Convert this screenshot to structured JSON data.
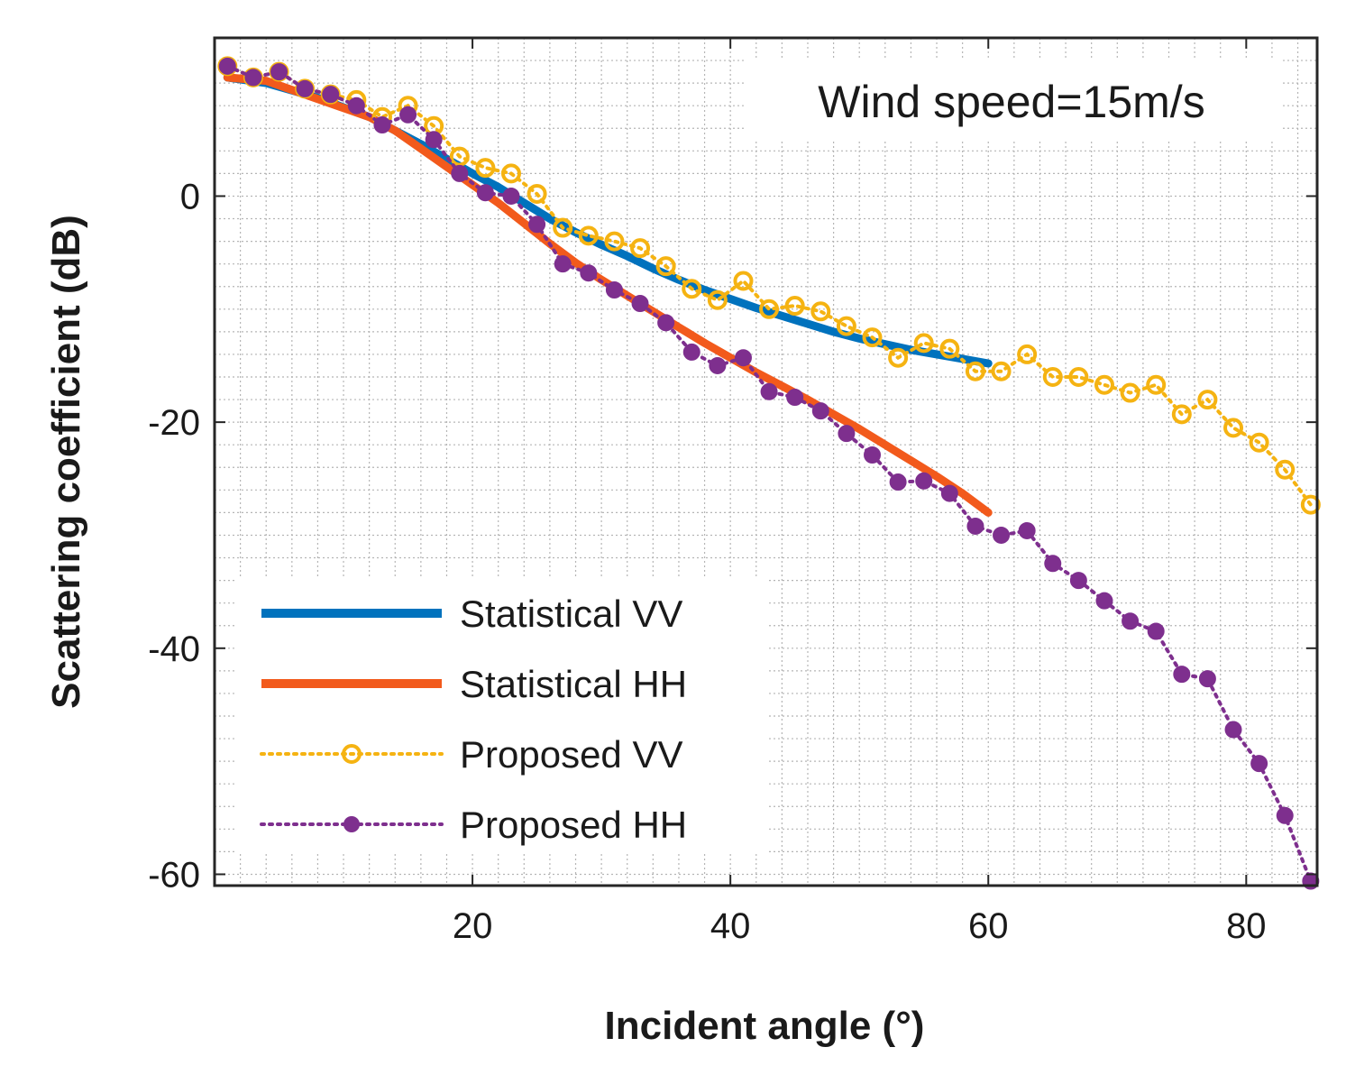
{
  "chart_data": {
    "type": "line",
    "xlabel": "Incident angle (°)",
    "ylabel": "Scattering coefficient (dB)",
    "annotation": "Wind speed=15m/s",
    "xlim": [
      0,
      85.5
    ],
    "ylim": [
      -61,
      14
    ],
    "xticks": [
      20,
      40,
      60,
      80
    ],
    "yticks": [
      0,
      -20,
      -40,
      -60
    ],
    "grid": "minor dotted",
    "legend_position": "bottom-left",
    "colors": {
      "statistical_vv": "#0072bd",
      "statistical_hh": "#f25a1c",
      "proposed_vv": "#f5b312",
      "proposed_hh": "#7e2f8e"
    },
    "series": [
      {
        "name": "Statistical VV",
        "style": "solid-thick",
        "color": "#0072bd",
        "x": [
          1,
          4,
          8,
          12,
          14,
          16,
          18,
          20,
          22,
          24,
          26,
          28,
          30,
          32,
          34,
          36,
          38,
          40,
          42,
          44,
          46,
          48,
          50,
          52,
          54,
          56,
          58,
          60
        ],
        "y": [
          10.5,
          10,
          8.7,
          7,
          5.8,
          4.6,
          3.3,
          2.0,
          0.8,
          -0.6,
          -2.0,
          -3.2,
          -4.3,
          -5.3,
          -6.4,
          -7.4,
          -8.3,
          -9.1,
          -9.9,
          -10.6,
          -11.3,
          -12.0,
          -12.6,
          -13.1,
          -13.6,
          -14.0,
          -14.4,
          -14.8
        ]
      },
      {
        "name": "Statistical HH",
        "style": "solid-thick",
        "color": "#f25a1c",
        "x": [
          1,
          4,
          8,
          12,
          14,
          16,
          18,
          20,
          22,
          24,
          26,
          28,
          30,
          32,
          34,
          36,
          38,
          40,
          42,
          44,
          46,
          48,
          50,
          52,
          54,
          56,
          58,
          60
        ],
        "y": [
          10.5,
          10.2,
          8.6,
          7.0,
          5.8,
          4.2,
          2.6,
          1.0,
          -0.6,
          -2.4,
          -4.2,
          -5.9,
          -7.4,
          -8.8,
          -10.2,
          -11.6,
          -13.0,
          -14.3,
          -15.6,
          -16.8,
          -18.0,
          -19.3,
          -20.6,
          -22.0,
          -23.4,
          -24.8,
          -26.3,
          -28.0
        ]
      },
      {
        "name": "Proposed VV",
        "style": "dotted-circle",
        "color": "#f5b312",
        "x": [
          1,
          3,
          5,
          7,
          9,
          11,
          13,
          15,
          17,
          19,
          21,
          23,
          25,
          27,
          29,
          31,
          33,
          35,
          37,
          39,
          41,
          43,
          45,
          47,
          49,
          51,
          53,
          55,
          57,
          59,
          61,
          63,
          65,
          67,
          69,
          71,
          73,
          75,
          77,
          79,
          81,
          83,
          85
        ],
        "y": [
          11.5,
          10.5,
          11,
          9.5,
          9,
          8.5,
          7,
          8,
          6.2,
          3.5,
          2.5,
          2,
          0.2,
          -2.8,
          -3.5,
          -4.0,
          -4.6,
          -6.2,
          -8.2,
          -9.2,
          -7.5,
          -10,
          -9.7,
          -10.2,
          -11.5,
          -12.5,
          -14.3,
          -13,
          -13.5,
          -15.5,
          -15.5,
          -14,
          -16,
          -16,
          -16.7,
          -17.4,
          -16.7,
          -19.3,
          -18,
          -20.5,
          -21.8,
          -24.2,
          -27.3
        ]
      },
      {
        "name": "Proposed HH",
        "style": "dotted-dot",
        "color": "#7e2f8e",
        "x": [
          1,
          3,
          5,
          7,
          9,
          11,
          13,
          15,
          17,
          19,
          21,
          23,
          25,
          27,
          29,
          31,
          33,
          35,
          37,
          39,
          41,
          43,
          45,
          47,
          49,
          51,
          53,
          55,
          57,
          59,
          61,
          63,
          65,
          67,
          69,
          71,
          73,
          75,
          77,
          79,
          81,
          83,
          85
        ],
        "y": [
          11.5,
          10.5,
          11,
          9.5,
          9,
          8,
          6.3,
          7.2,
          5,
          2,
          0.3,
          0,
          -2.5,
          -6,
          -6.8,
          -8.3,
          -9.5,
          -11.2,
          -13.8,
          -15,
          -14.3,
          -17.3,
          -17.8,
          -19,
          -21,
          -22.9,
          -25.3,
          -25.2,
          -26.3,
          -29.2,
          -30,
          -29.6,
          -32.5,
          -34,
          -35.8,
          -37.6,
          -38.5,
          -42.3,
          -42.7,
          -47.2,
          -50.2,
          -54.8,
          -60.6
        ]
      }
    ]
  }
}
